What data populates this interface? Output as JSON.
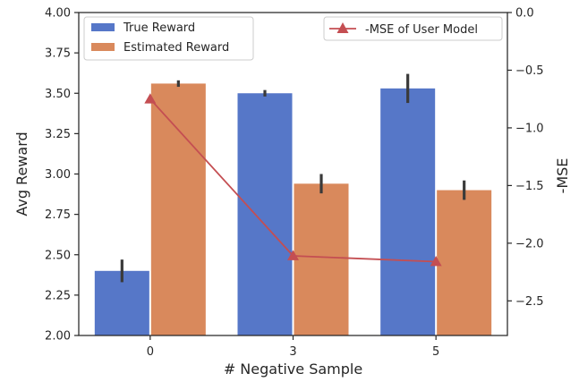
{
  "chart_data": {
    "type": "bar",
    "categories": [
      "0",
      "3",
      "5"
    ],
    "xlabel": "# Negative Sample",
    "ylabel": "Avg Reward",
    "ylim": [
      2.0,
      4.0
    ],
    "yticks": [
      "2.00",
      "2.25",
      "2.50",
      "2.75",
      "3.00",
      "3.25",
      "3.50",
      "3.75",
      "4.00"
    ],
    "series": [
      {
        "name": "True Reward",
        "values": [
          2.4,
          3.5,
          3.53
        ],
        "err": [
          0.07,
          0.02,
          0.09
        ],
        "color": "#5677c8"
      },
      {
        "name": "Estimated Reward",
        "values": [
          3.56,
          2.94,
          2.9
        ],
        "err": [
          0.02,
          0.06,
          0.06
        ],
        "color": "#d9895c"
      }
    ],
    "secondary_axis": {
      "label": "-MSE",
      "ylim": [
        -2.8,
        0.0
      ],
      "yticks": [
        "0.0",
        "−0.5",
        "−1.0",
        "−1.5",
        "−2.0",
        "−2.5"
      ],
      "series": {
        "name": "-MSE of User Model",
        "values": [
          -0.75,
          -2.11,
          -2.16
        ],
        "color": "#c44e52",
        "marker": "triangle"
      }
    },
    "legend_left": "upper-left",
    "legend_right": "upper-right",
    "grid": false
  }
}
